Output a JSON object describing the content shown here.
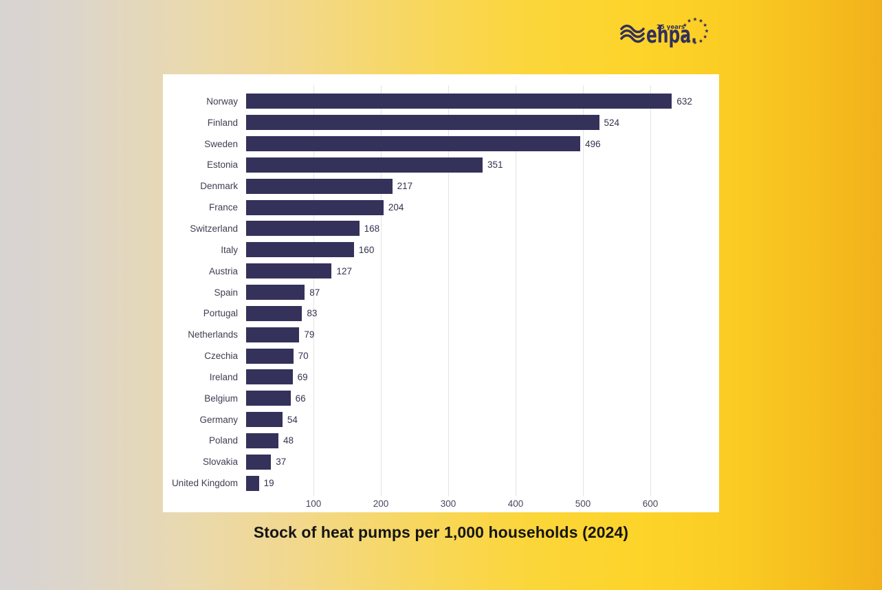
{
  "logo": {
    "brand": "ehpa.",
    "anniversary": "25 years",
    "color": "#33305a"
  },
  "caption": "Stock of heat pumps per 1,000 households (2024)",
  "chart_data": {
    "type": "bar",
    "orientation": "horizontal",
    "title": "Stock of heat pumps per 1,000 households (2024)",
    "xlabel": "",
    "ylabel": "",
    "categories": [
      "Norway",
      "Finland",
      "Sweden",
      "Estonia",
      "Denmark",
      "France",
      "Switzerland",
      "Italy",
      "Austria",
      "Spain",
      "Portugal",
      "Netherlands",
      "Czechia",
      "Ireland",
      "Belgium",
      "Germany",
      "Poland",
      "Slovakia",
      "United Kingdom"
    ],
    "values": [
      632,
      524,
      496,
      351,
      217,
      204,
      168,
      160,
      127,
      87,
      83,
      79,
      70,
      69,
      66,
      54,
      48,
      37,
      19
    ],
    "xticks": [
      100,
      200,
      300,
      400,
      500,
      600
    ],
    "xlim": [
      0,
      660
    ],
    "grid": true,
    "legend_position": "none",
    "bar_color": "#34315a",
    "background_color": "#ffffff"
  }
}
